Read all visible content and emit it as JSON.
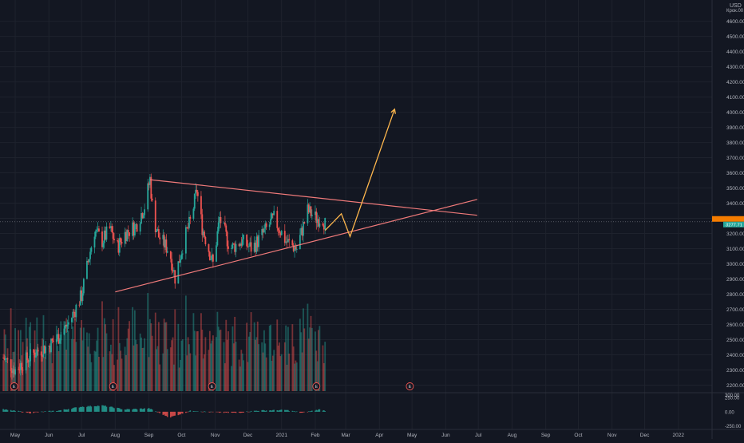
{
  "header": {
    "currency": "USD",
    "currency_sub": "Крок.00"
  },
  "price_tag": {
    "current": "3277.71",
    "bid": ""
  },
  "chart_data": [
    {
      "type": "candlestick",
      "title": "",
      "y_axis_labels": [
        "4600.00",
        "4500.00",
        "4400.00",
        "4300.00",
        "4200.00",
        "4100.00",
        "4000.00",
        "3900.00",
        "3800.00",
        "3700.00",
        "3600.00",
        "3500.00",
        "3400.00",
        "3300.00",
        "3200.00",
        "3100.00",
        "3000.00",
        "2900.00",
        "2800.00",
        "2700.00",
        "2600.00",
        "2500.00",
        "2400.00",
        "2300.00",
        "2200.00"
      ],
      "ylim": [
        2150,
        4740
      ],
      "x_axis_labels": [
        "May",
        "Jun",
        "Jul",
        "Aug",
        "Sep",
        "Oct",
        "Nov",
        "Dec",
        "2021",
        "Feb",
        "Mar",
        "Apr",
        "May",
        "Jun",
        "Jul",
        "Aug",
        "Sep",
        "Oct",
        "Nov",
        "Dec",
        "2022"
      ],
      "x_range": [
        "2020-04-17",
        "2022-02-01"
      ],
      "last_price": 3277.71,
      "up_color": "#26a69a",
      "down_color": "#ef5350",
      "closes": [
        [
          "2020-04-20",
          2380
        ],
        [
          "2020-05-01",
          2300
        ],
        [
          "2020-05-10",
          2360
        ],
        [
          "2020-05-20",
          2420
        ],
        [
          "2020-06-01",
          2460
        ],
        [
          "2020-06-10",
          2520
        ],
        [
          "2020-06-20",
          2620
        ],
        [
          "2020-07-01",
          2790
        ],
        [
          "2020-07-08",
          3050
        ],
        [
          "2020-07-13",
          3220
        ],
        [
          "2020-07-20",
          3150
        ],
        [
          "2020-07-27",
          3230
        ],
        [
          "2020-08-03",
          3110
        ],
        [
          "2020-08-10",
          3200
        ],
        [
          "2020-08-20",
          3250
        ],
        [
          "2020-08-28",
          3380
        ],
        [
          "2020-09-02",
          3560
        ],
        [
          "2020-09-05",
          3300
        ],
        [
          "2020-09-10",
          3180
        ],
        [
          "2020-09-20",
          3080
        ],
        [
          "2020-09-25",
          2910
        ],
        [
          "2020-10-03",
          3150
        ],
        [
          "2020-10-10",
          3300
        ],
        [
          "2020-10-15",
          3490
        ],
        [
          "2020-10-20",
          3240
        ],
        [
          "2020-10-30",
          3000
        ],
        [
          "2020-11-05",
          3300
        ],
        [
          "2020-11-15",
          3100
        ],
        [
          "2020-11-25",
          3150
        ],
        [
          "2020-12-05",
          3100
        ],
        [
          "2020-12-15",
          3200
        ],
        [
          "2020-12-25",
          3300
        ],
        [
          "2021-01-05",
          3150
        ],
        [
          "2021-01-15",
          3100
        ],
        [
          "2021-01-25",
          3350
        ],
        [
          "2021-02-02",
          3300
        ],
        [
          "2021-02-08",
          3300
        ],
        [
          "2021-02-10",
          3260
        ]
      ]
    },
    {
      "type": "bar",
      "title": "Volume",
      "note": "volume histogram rendered as a pane inside the price chart"
    },
    {
      "type": "histogram",
      "title": "",
      "y_axis_labels": [
        "300.00",
        "250.00",
        "0.00",
        "-250.00"
      ],
      "ylim": [
        -300,
        310
      ],
      "closes": [
        [
          "2020-04-20",
          40
        ],
        [
          "2020-05-15",
          -20
        ],
        [
          "2020-06-10",
          20
        ],
        [
          "2020-07-01",
          90
        ],
        [
          "2020-07-20",
          110
        ],
        [
          "2020-08-10",
          40
        ],
        [
          "2020-09-01",
          60
        ],
        [
          "2020-09-20",
          -100
        ],
        [
          "2020-10-10",
          20
        ],
        [
          "2020-10-30",
          -10
        ],
        [
          "2020-11-20",
          -20
        ],
        [
          "2020-12-10",
          20
        ],
        [
          "2021-01-05",
          30
        ],
        [
          "2021-01-20",
          -20
        ],
        [
          "2021-02-05",
          40
        ],
        [
          "2021-02-10",
          20
        ]
      ]
    }
  ],
  "drawings": {
    "triangle_upper": [
      [
        "2020-09-02",
        3555
      ],
      [
        "2021-06-30",
        3320
      ]
    ],
    "triangle_lower": [
      [
        "2020-08-01",
        2815
      ],
      [
        "2021-06-30",
        3425
      ]
    ],
    "projection": [
      [
        "2021-02-10",
        3220
      ],
      [
        "2021-02-25",
        3330
      ],
      [
        "2021-03-05",
        3180
      ],
      [
        "2021-04-15",
        4020
      ]
    ]
  },
  "earnings": {
    "dates": [
      "2020-04-30",
      "2020-07-30",
      "2020-10-29",
      "2021-02-02",
      "2021-04-29"
    ],
    "label": "E"
  },
  "labels": {
    "axis_price": "3277.71",
    "axis_oscillator_zero": "0.00"
  }
}
